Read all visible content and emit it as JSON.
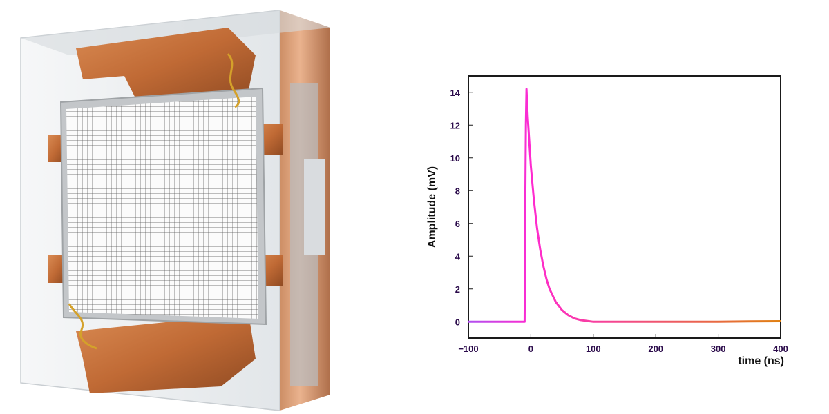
{
  "colors": {
    "copper": "#c8733e",
    "copper_dark": "#9a4f24",
    "glass": "#eef1f3",
    "grid_frame": "#b9bdc0",
    "frame_stroke": "#1a1a1a",
    "tick_text": "#2a0a4a",
    "trace_start": "#b050f0",
    "trace_peak": "#ff2ad0",
    "trace_end": "#e08010"
  },
  "illustration": {
    "subject": "sensor-array-package",
    "icon": "sipm-detector-icon"
  },
  "chart_data": {
    "type": "line",
    "xlabel": "time (ns)",
    "ylabel": "Amplitude (mV)",
    "xlim": [
      -100,
      400
    ],
    "ylim": [
      -1,
      15
    ],
    "xticks": [
      -100,
      0,
      100,
      200,
      300,
      400
    ],
    "xtick_labels": [
      "−100",
      "0",
      "100",
      "200",
      "300",
      "400"
    ],
    "yticks": [
      0,
      2,
      4,
      6,
      8,
      10,
      12,
      14
    ],
    "ytick_labels": [
      "0",
      "2",
      "4",
      "6",
      "8",
      "10",
      "12",
      "14"
    ],
    "grid": false,
    "series": [
      {
        "x": [
          -100,
          -80,
          -60,
          -40,
          -20,
          -10,
          -9,
          -8,
          -7,
          -5,
          0,
          5,
          10,
          15,
          20,
          25,
          30,
          40,
          50,
          60,
          70,
          80,
          90,
          100,
          120,
          140,
          160,
          180,
          200,
          250,
          300,
          350,
          400
        ],
        "y": [
          0,
          0,
          0,
          0,
          0,
          0,
          7,
          12,
          14.2,
          12.5,
          9.5,
          7.4,
          5.7,
          4.4,
          3.4,
          2.6,
          2.0,
          1.2,
          0.7,
          0.4,
          0.2,
          0.1,
          0.05,
          0,
          0,
          0,
          0,
          0,
          0,
          0,
          0,
          0.02,
          0.03
        ]
      }
    ]
  }
}
